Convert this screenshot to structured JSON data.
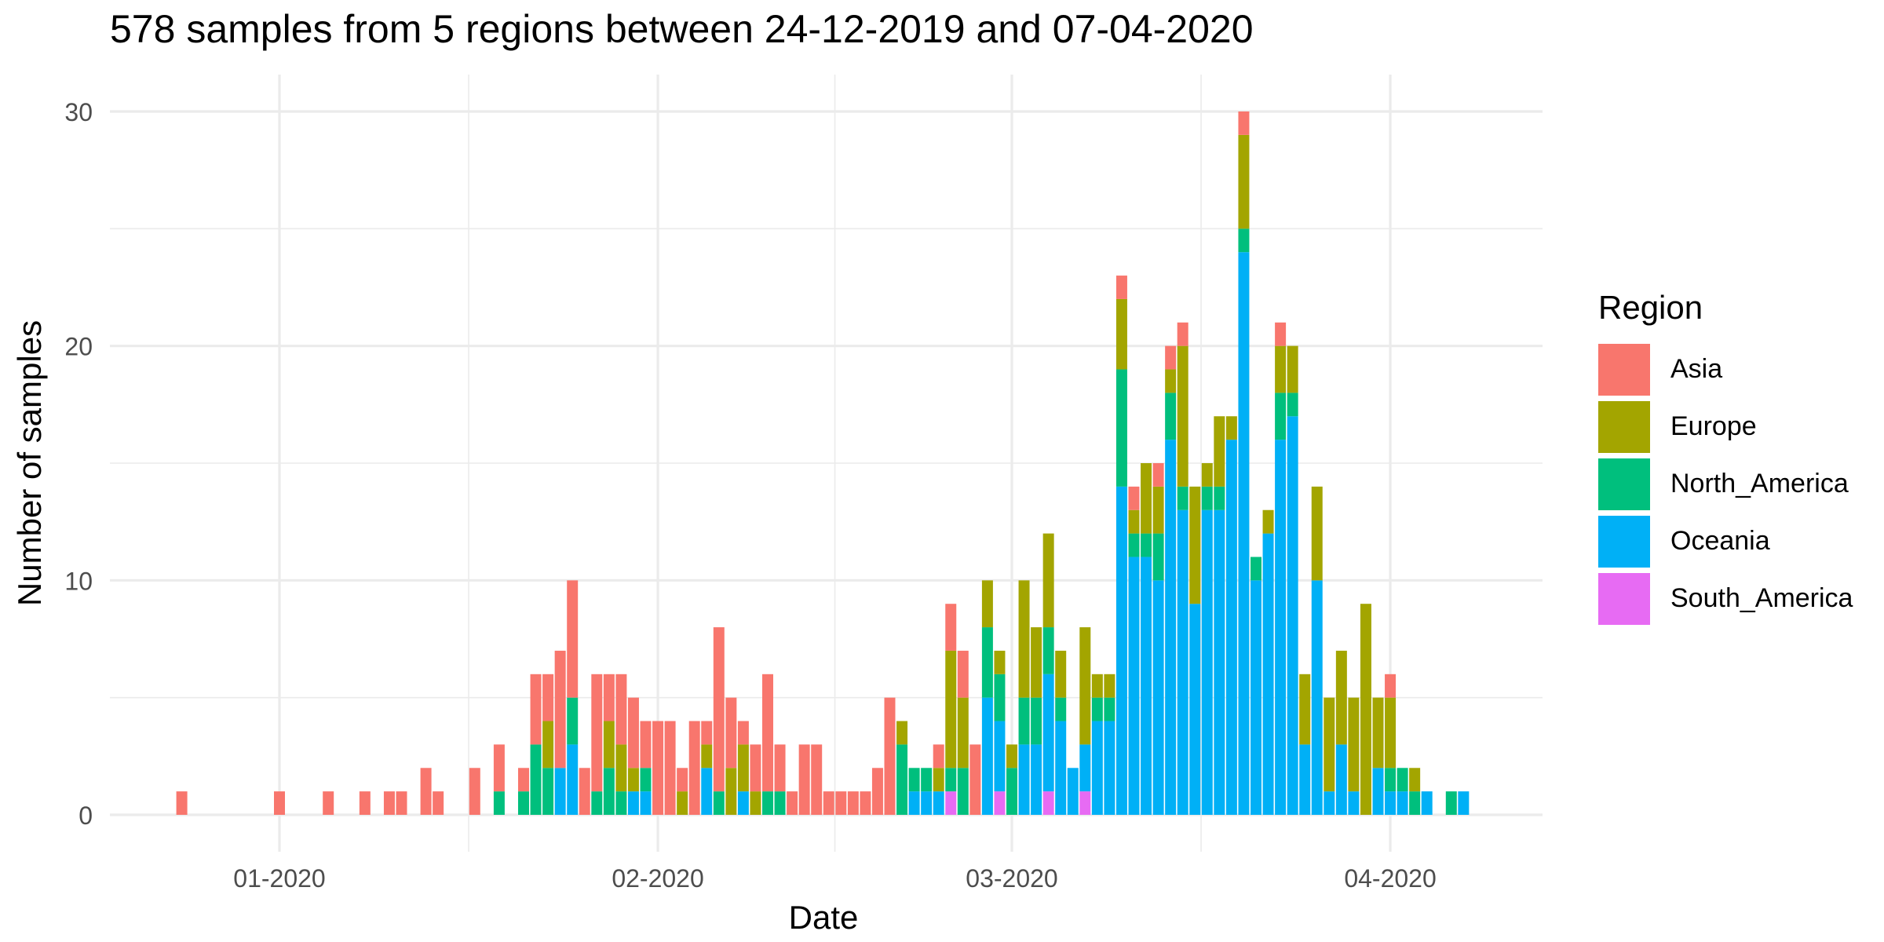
{
  "chart_data": {
    "type": "bar",
    "stacked": true,
    "title": "578 samples from 5 regions between 24-12-2019 and 07-04-2020",
    "xlabel": "Date",
    "ylabel": "Number of samples",
    "ylim": [
      0,
      31
    ],
    "yticks": [
      0,
      10,
      20,
      30
    ],
    "grid": true,
    "legend_title": "Region",
    "legend_position": "right",
    "series_order": [
      "South_America",
      "Oceania",
      "North_America",
      "Europe",
      "Asia"
    ],
    "series": [
      {
        "name": "Asia",
        "color": "#F8766D"
      },
      {
        "name": "Europe",
        "color": "#A3A500"
      },
      {
        "name": "North_America",
        "color": "#00BF7D"
      },
      {
        "name": "Oceania",
        "color": "#00B0F6"
      },
      {
        "name": "South_America",
        "color": "#E76BF3"
      }
    ],
    "x_ticks": [
      {
        "date": "2020-01-01",
        "label": "01-2020"
      },
      {
        "date": "2020-02-01",
        "label": "02-2020"
      },
      {
        "date": "2020-03-01",
        "label": "03-2020"
      },
      {
        "date": "2020-04-01",
        "label": "04-2020"
      }
    ],
    "bars": [
      {
        "date": "2019-12-24",
        "Asia": 1
      },
      {
        "date": "2020-01-01",
        "Asia": 1
      },
      {
        "date": "2020-01-05",
        "Asia": 1
      },
      {
        "date": "2020-01-08",
        "Asia": 1
      },
      {
        "date": "2020-01-10",
        "Asia": 1
      },
      {
        "date": "2020-01-11",
        "Asia": 1
      },
      {
        "date": "2020-01-13",
        "Asia": 2
      },
      {
        "date": "2020-01-14",
        "Asia": 1
      },
      {
        "date": "2020-01-17",
        "Asia": 2
      },
      {
        "date": "2020-01-19",
        "North_America": 1,
        "Asia": 2
      },
      {
        "date": "2020-01-21",
        "North_America": 1,
        "Asia": 1
      },
      {
        "date": "2020-01-22",
        "North_America": 3,
        "Asia": 3
      },
      {
        "date": "2020-01-23",
        "North_America": 2,
        "Europe": 2,
        "Asia": 2
      },
      {
        "date": "2020-01-24",
        "Oceania": 2,
        "Asia": 5
      },
      {
        "date": "2020-01-25",
        "Oceania": 3,
        "North_America": 2,
        "Asia": 5
      },
      {
        "date": "2020-01-26",
        "Asia": 2
      },
      {
        "date": "2020-01-27",
        "North_America": 1,
        "Asia": 5
      },
      {
        "date": "2020-01-28",
        "North_America": 2,
        "Europe": 2,
        "Asia": 2
      },
      {
        "date": "2020-01-29",
        "North_America": 1,
        "Europe": 2,
        "Asia": 3
      },
      {
        "date": "2020-01-30",
        "Oceania": 1,
        "Europe": 1,
        "Asia": 3
      },
      {
        "date": "2020-01-31",
        "Oceania": 1,
        "North_America": 1,
        "Asia": 2
      },
      {
        "date": "2020-02-01",
        "Asia": 4
      },
      {
        "date": "2020-02-02",
        "Asia": 4
      },
      {
        "date": "2020-02-03",
        "Europe": 1,
        "Asia": 1
      },
      {
        "date": "2020-02-04",
        "Asia": 4
      },
      {
        "date": "2020-02-05",
        "Oceania": 2,
        "Europe": 1,
        "Asia": 1
      },
      {
        "date": "2020-02-06",
        "North_America": 1,
        "Asia": 7
      },
      {
        "date": "2020-02-07",
        "Europe": 2,
        "Asia": 3
      },
      {
        "date": "2020-02-08",
        "Oceania": 1,
        "Europe": 2,
        "Asia": 1
      },
      {
        "date": "2020-02-09",
        "Europe": 1,
        "Asia": 2
      },
      {
        "date": "2020-02-10",
        "North_America": 1,
        "Asia": 5
      },
      {
        "date": "2020-02-11",
        "North_America": 1,
        "Asia": 2
      },
      {
        "date": "2020-02-12",
        "Asia": 1
      },
      {
        "date": "2020-02-13",
        "Asia": 3
      },
      {
        "date": "2020-02-14",
        "Asia": 3
      },
      {
        "date": "2020-02-15",
        "Asia": 1
      },
      {
        "date": "2020-02-16",
        "Asia": 1
      },
      {
        "date": "2020-02-17",
        "Asia": 1
      },
      {
        "date": "2020-02-18",
        "Asia": 1
      },
      {
        "date": "2020-02-19",
        "Asia": 2
      },
      {
        "date": "2020-02-20",
        "Asia": 5
      },
      {
        "date": "2020-02-21",
        "North_America": 3,
        "Europe": 1
      },
      {
        "date": "2020-02-22",
        "Oceania": 1,
        "North_America": 1
      },
      {
        "date": "2020-02-23",
        "Oceania": 1,
        "North_America": 1
      },
      {
        "date": "2020-02-24",
        "Oceania": 1,
        "Europe": 1,
        "Asia": 1
      },
      {
        "date": "2020-02-25",
        "South_America": 1,
        "North_America": 1,
        "Europe": 5,
        "Asia": 2
      },
      {
        "date": "2020-02-26",
        "North_America": 2,
        "Europe": 3,
        "Asia": 2
      },
      {
        "date": "2020-02-27",
        "Asia": 3
      },
      {
        "date": "2020-02-28",
        "Oceania": 5,
        "North_America": 3,
        "Europe": 2
      },
      {
        "date": "2020-02-29",
        "South_America": 1,
        "Oceania": 3,
        "North_America": 2,
        "Europe": 1
      },
      {
        "date": "2020-03-01",
        "North_America": 2,
        "Europe": 1
      },
      {
        "date": "2020-03-02",
        "Oceania": 3,
        "North_America": 2,
        "Europe": 5
      },
      {
        "date": "2020-03-03",
        "Oceania": 3,
        "North_America": 2,
        "Europe": 3
      },
      {
        "date": "2020-03-04",
        "South_America": 1,
        "Oceania": 5,
        "North_America": 2,
        "Europe": 4
      },
      {
        "date": "2020-03-05",
        "Oceania": 4,
        "North_America": 1,
        "Europe": 2
      },
      {
        "date": "2020-03-06",
        "Oceania": 2
      },
      {
        "date": "2020-03-07",
        "South_America": 1,
        "Oceania": 2,
        "Europe": 5
      },
      {
        "date": "2020-03-08",
        "Oceania": 4,
        "North_America": 1,
        "Europe": 1
      },
      {
        "date": "2020-03-09",
        "Oceania": 4,
        "North_America": 1,
        "Europe": 1
      },
      {
        "date": "2020-03-10",
        "Oceania": 14,
        "North_America": 5,
        "Europe": 3,
        "Asia": 1
      },
      {
        "date": "2020-03-11",
        "Oceania": 11,
        "North_America": 1,
        "Europe": 1,
        "Asia": 1
      },
      {
        "date": "2020-03-12",
        "Oceania": 11,
        "North_America": 1,
        "Europe": 3
      },
      {
        "date": "2020-03-13",
        "Oceania": 10,
        "North_America": 2,
        "Europe": 2,
        "Asia": 1
      },
      {
        "date": "2020-03-14",
        "Oceania": 16,
        "North_America": 2,
        "Europe": 1,
        "Asia": 1
      },
      {
        "date": "2020-03-15",
        "Oceania": 13,
        "North_America": 1,
        "Europe": 6,
        "Asia": 1
      },
      {
        "date": "2020-03-16",
        "Oceania": 9,
        "Europe": 5
      },
      {
        "date": "2020-03-17",
        "Oceania": 13,
        "North_America": 1,
        "Europe": 1
      },
      {
        "date": "2020-03-18",
        "Oceania": 13,
        "North_America": 1,
        "Europe": 3
      },
      {
        "date": "2020-03-19",
        "Oceania": 16,
        "Europe": 1
      },
      {
        "date": "2020-03-20",
        "Oceania": 24,
        "North_America": 1,
        "Europe": 4,
        "Asia": 1
      },
      {
        "date": "2020-03-21",
        "Oceania": 10,
        "North_America": 1
      },
      {
        "date": "2020-03-22",
        "Oceania": 12,
        "Europe": 1
      },
      {
        "date": "2020-03-23",
        "Oceania": 16,
        "North_America": 2,
        "Europe": 2,
        "Asia": 1
      },
      {
        "date": "2020-03-24",
        "Oceania": 17,
        "North_America": 1,
        "Europe": 2
      },
      {
        "date": "2020-03-25",
        "Oceania": 3,
        "Europe": 3
      },
      {
        "date": "2020-03-26",
        "Oceania": 10,
        "Europe": 4
      },
      {
        "date": "2020-03-27",
        "Oceania": 1,
        "Europe": 4
      },
      {
        "date": "2020-03-28",
        "Oceania": 3,
        "Europe": 4
      },
      {
        "date": "2020-03-29",
        "Oceania": 1,
        "Europe": 4
      },
      {
        "date": "2020-03-30",
        "Europe": 9
      },
      {
        "date": "2020-03-31",
        "Oceania": 2,
        "Europe": 3
      },
      {
        "date": "2020-04-01",
        "Oceania": 1,
        "North_America": 1,
        "Europe": 3,
        "Asia": 1
      },
      {
        "date": "2020-04-02",
        "Oceania": 1,
        "North_America": 1
      },
      {
        "date": "2020-04-03",
        "North_America": 1,
        "Europe": 1
      },
      {
        "date": "2020-04-04",
        "Oceania": 1
      },
      {
        "date": "2020-04-06",
        "North_America": 1
      },
      {
        "date": "2020-04-07",
        "Oceania": 1
      }
    ]
  }
}
